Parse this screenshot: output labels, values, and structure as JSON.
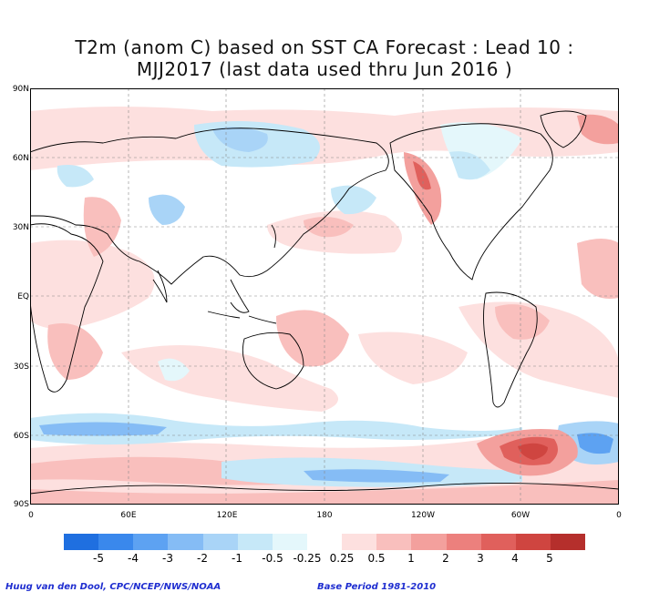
{
  "title_line1": "T2m (anom C) based on SST CA Forecast : Lead 10 :",
  "title_line2": "MJJ2017 (last data used thru Jun 2016 )",
  "lat_labels": [
    "90N",
    "60N",
    "30N",
    "EQ",
    "30S",
    "60S",
    "90S"
  ],
  "lon_labels": [
    "0",
    "60E",
    "120E",
    "180",
    "120W",
    "60W",
    "0"
  ],
  "colorbar": {
    "colors": [
      "#1f6fe0",
      "#3a88ec",
      "#5da2f2",
      "#85bcf5",
      "#a9d4f7",
      "#c6e8f8",
      "#e4f7fb",
      "#ffffff",
      "#fde0df",
      "#f9bfbd",
      "#f3a09d",
      "#ec807d",
      "#e0605c",
      "#cf4540",
      "#b52f2c"
    ],
    "labels": [
      "-5",
      "-4",
      "-3",
      "-2",
      "-1",
      "-0.5",
      "-0.25",
      "0.25",
      "0.5",
      "1",
      "2",
      "3",
      "4",
      "5"
    ]
  },
  "credit_left": "Huug van den Dool, CPC/NCEP/NWS/NOAA",
  "credit_right": "Base Period 1981-2010"
}
